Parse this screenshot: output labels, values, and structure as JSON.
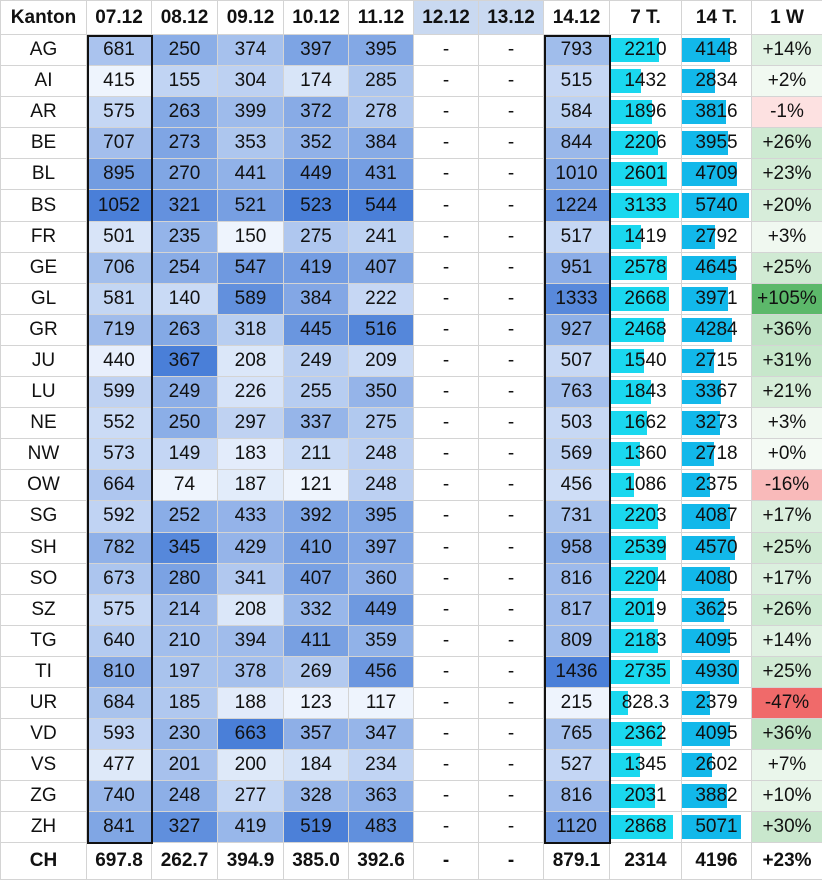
{
  "headers": [
    "Kanton",
    "07.12",
    "08.12",
    "09.12",
    "10.12",
    "11.12",
    "12.12",
    "13.12",
    "14.12",
    "7 T.",
    "14 T.",
    "1 W"
  ],
  "rows": [
    [
      "AG",
      "681",
      "250",
      "374",
      "397",
      "395",
      "-",
      "-",
      "793",
      "2210",
      "4148",
      "+14%"
    ],
    [
      "AI",
      "415",
      "155",
      "304",
      "174",
      "285",
      "-",
      "-",
      "515",
      "1432",
      "2834",
      "+2%"
    ],
    [
      "AR",
      "575",
      "263",
      "399",
      "372",
      "278",
      "-",
      "-",
      "584",
      "1896",
      "3816",
      "-1%"
    ],
    [
      "BE",
      "707",
      "273",
      "353",
      "352",
      "384",
      "-",
      "-",
      "844",
      "2206",
      "3955",
      "+26%"
    ],
    [
      "BL",
      "895",
      "270",
      "441",
      "449",
      "431",
      "-",
      "-",
      "1010",
      "2601",
      "4709",
      "+23%"
    ],
    [
      "BS",
      "1052",
      "321",
      "521",
      "523",
      "544",
      "-",
      "-",
      "1224",
      "3133",
      "5740",
      "+20%"
    ],
    [
      "FR",
      "501",
      "235",
      "150",
      "275",
      "241",
      "-",
      "-",
      "517",
      "1419",
      "2792",
      "+3%"
    ],
    [
      "GE",
      "706",
      "254",
      "547",
      "419",
      "407",
      "-",
      "-",
      "951",
      "2578",
      "4645",
      "+25%"
    ],
    [
      "GL",
      "581",
      "140",
      "589",
      "384",
      "222",
      "-",
      "-",
      "1333",
      "2668",
      "3971",
      "+105%"
    ],
    [
      "GR",
      "719",
      "263",
      "318",
      "445",
      "516",
      "-",
      "-",
      "927",
      "2468",
      "4284",
      "+36%"
    ],
    [
      "JU",
      "440",
      "367",
      "208",
      "249",
      "209",
      "-",
      "-",
      "507",
      "1540",
      "2715",
      "+31%"
    ],
    [
      "LU",
      "599",
      "249",
      "226",
      "255",
      "350",
      "-",
      "-",
      "763",
      "1843",
      "3367",
      "+21%"
    ],
    [
      "NE",
      "552",
      "250",
      "297",
      "337",
      "275",
      "-",
      "-",
      "503",
      "1662",
      "3273",
      "+3%"
    ],
    [
      "NW",
      "573",
      "149",
      "183",
      "211",
      "248",
      "-",
      "-",
      "569",
      "1360",
      "2718",
      "+0%"
    ],
    [
      "OW",
      "664",
      "74",
      "187",
      "121",
      "248",
      "-",
      "-",
      "456",
      "1086",
      "2375",
      "-16%"
    ],
    [
      "SG",
      "592",
      "252",
      "433",
      "392",
      "395",
      "-",
      "-",
      "731",
      "2203",
      "4087",
      "+17%"
    ],
    [
      "SH",
      "782",
      "345",
      "429",
      "410",
      "397",
      "-",
      "-",
      "958",
      "2539",
      "4570",
      "+25%"
    ],
    [
      "SO",
      "673",
      "280",
      "341",
      "407",
      "360",
      "-",
      "-",
      "816",
      "2204",
      "4080",
      "+17%"
    ],
    [
      "SZ",
      "575",
      "214",
      "208",
      "332",
      "449",
      "-",
      "-",
      "817",
      "2019",
      "3625",
      "+26%"
    ],
    [
      "TG",
      "640",
      "210",
      "394",
      "411",
      "359",
      "-",
      "-",
      "809",
      "2183",
      "4095",
      "+14%"
    ],
    [
      "TI",
      "810",
      "197",
      "378",
      "269",
      "456",
      "-",
      "-",
      "1436",
      "2735",
      "4930",
      "+25%"
    ],
    [
      "UR",
      "684",
      "185",
      "188",
      "123",
      "117",
      "-",
      "-",
      "215",
      "828.3",
      "2379",
      "-47%"
    ],
    [
      "VD",
      "593",
      "230",
      "663",
      "357",
      "347",
      "-",
      "-",
      "765",
      "2362",
      "4095",
      "+36%"
    ],
    [
      "VS",
      "477",
      "201",
      "200",
      "184",
      "234",
      "-",
      "-",
      "527",
      "1345",
      "2602",
      "+7%"
    ],
    [
      "ZG",
      "740",
      "248",
      "277",
      "328",
      "363",
      "-",
      "-",
      "816",
      "2031",
      "3882",
      "+10%"
    ],
    [
      "ZH",
      "841",
      "327",
      "419",
      "519",
      "483",
      "-",
      "-",
      "1120",
      "2868",
      "5071",
      "+30%"
    ]
  ],
  "total": [
    "CH",
    "697.8",
    "262.7",
    "394.9",
    "385.0",
    "392.6",
    "-",
    "-",
    "879.1",
    "2314",
    "4196",
    "+23%"
  ],
  "colors": {
    "header_bg_empty": "#c9d9f1",
    "bar_7t": "#1ad8ef",
    "bar_14t": "#12b8ea",
    "heat_low": "#eef4fd",
    "heat_high": "#4a7fd8",
    "pos_high": "#5cb86a",
    "pos_low": "#f4faf4",
    "neg_low": "#fde4e4",
    "neg_high": "#f06a6a",
    "frame": "#111111"
  }
}
